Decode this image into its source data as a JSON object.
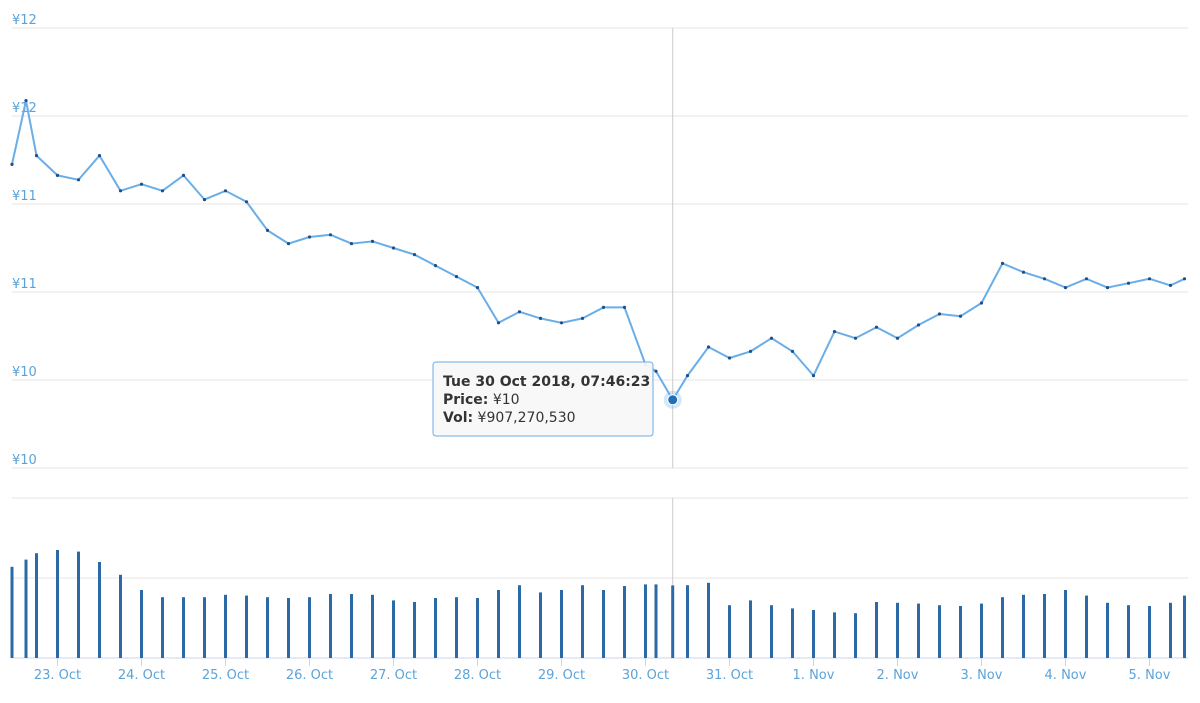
{
  "chart_data": {
    "type": "stock",
    "xlim": [
      "2018-10-22T11:00",
      "2018-11-05T11:00"
    ],
    "xticks": [
      {
        "value": "2018-10-23T00:00",
        "label": "23. Oct"
      },
      {
        "value": "2018-10-24T00:00",
        "label": "24. Oct"
      },
      {
        "value": "2018-10-25T00:00",
        "label": "25. Oct"
      },
      {
        "value": "2018-10-26T00:00",
        "label": "26. Oct"
      },
      {
        "value": "2018-10-27T00:00",
        "label": "27. Oct"
      },
      {
        "value": "2018-10-28T00:00",
        "label": "28. Oct"
      },
      {
        "value": "2018-10-29T00:00",
        "label": "29. Oct"
      },
      {
        "value": "2018-10-30T00:00",
        "label": "30. Oct"
      },
      {
        "value": "2018-10-31T00:00",
        "label": "31. Oct"
      },
      {
        "value": "2018-11-01T00:00",
        "label": "1. Nov"
      },
      {
        "value": "2018-11-02T00:00",
        "label": "2. Nov"
      },
      {
        "value": "2018-11-03T00:00",
        "label": "3. Nov"
      },
      {
        "value": "2018-11-04T00:00",
        "label": "4. Nov"
      },
      {
        "value": "2018-11-05T00:00",
        "label": "5. Nov"
      }
    ],
    "ylim": [
      10,
      12
    ],
    "yticks": [
      {
        "value": 12,
        "label": "¥12"
      },
      {
        "value": 11.6,
        "label": "¥12"
      },
      {
        "value": 11.2,
        "label": "¥11"
      },
      {
        "value": 10.8,
        "label": "¥11"
      },
      {
        "value": 10.4,
        "label": "¥10"
      },
      {
        "value": 10,
        "label": "¥10"
      }
    ],
    "vol_ylim": [
      0,
      2000000000
    ],
    "vol_gridlines": [
      0,
      1000000000,
      2000000000
    ],
    "grid": true,
    "x": [
      "2018-10-22T11:00",
      "2018-10-22T15:00",
      "2018-10-22T18:00",
      "2018-10-23T00:00",
      "2018-10-23T06:00",
      "2018-10-23T12:00",
      "2018-10-23T18:00",
      "2018-10-24T00:00",
      "2018-10-24T06:00",
      "2018-10-24T12:00",
      "2018-10-24T18:00",
      "2018-10-25T00:00",
      "2018-10-25T06:00",
      "2018-10-25T12:00",
      "2018-10-25T18:00",
      "2018-10-26T00:00",
      "2018-10-26T06:00",
      "2018-10-26T12:00",
      "2018-10-26T18:00",
      "2018-10-27T00:00",
      "2018-10-27T06:00",
      "2018-10-27T12:00",
      "2018-10-27T18:00",
      "2018-10-28T00:00",
      "2018-10-28T06:00",
      "2018-10-28T12:00",
      "2018-10-28T18:00",
      "2018-10-29T00:00",
      "2018-10-29T06:00",
      "2018-10-29T12:00",
      "2018-10-29T18:00",
      "2018-10-30T00:00",
      "2018-10-30T03:00",
      "2018-10-30T07:46:23",
      "2018-10-30T12:00",
      "2018-10-30T18:00",
      "2018-10-31T00:00",
      "2018-10-31T06:00",
      "2018-10-31T12:00",
      "2018-10-31T18:00",
      "2018-11-01T00:00",
      "2018-11-01T06:00",
      "2018-11-01T12:00",
      "2018-11-01T18:00",
      "2018-11-02T00:00",
      "2018-11-02T06:00",
      "2018-11-02T12:00",
      "2018-11-02T18:00",
      "2018-11-03T00:00",
      "2018-11-03T06:00",
      "2018-11-03T12:00",
      "2018-11-03T18:00",
      "2018-11-04T00:00",
      "2018-11-04T06:00",
      "2018-11-04T12:00",
      "2018-11-04T18:00",
      "2018-11-05T00:00",
      "2018-11-05T06:00",
      "2018-11-05T10:00"
    ],
    "series": [
      {
        "name": "Price",
        "color": "#6aaee8",
        "values": [
          11.38,
          11.67,
          11.42,
          11.33,
          11.31,
          11.42,
          11.26,
          11.29,
          11.26,
          11.33,
          11.22,
          11.26,
          11.21,
          11.08,
          11.02,
          11.05,
          11.06,
          11.02,
          11.03,
          11.0,
          10.97,
          10.92,
          10.87,
          10.82,
          10.66,
          10.71,
          10.68,
          10.66,
          10.68,
          10.73,
          10.73,
          10.47,
          10.44,
          10.31,
          10.42,
          10.55,
          10.5,
          10.53,
          10.59,
          10.53,
          10.42,
          10.62,
          10.59,
          10.64,
          10.59,
          10.65,
          10.7,
          10.69,
          10.75,
          10.93,
          10.89,
          10.86,
          10.82,
          10.86,
          10.82,
          10.84,
          10.86,
          10.83,
          10.86
        ]
      },
      {
        "name": "Vol",
        "color": "#2b6aa6",
        "values": [
          1140000000,
          1230000000,
          1310000000,
          1350000000,
          1330000000,
          1200000000,
          1040000000,
          850000000,
          760000000,
          760000000,
          760000000,
          790000000,
          780000000,
          760000000,
          750000000,
          760000000,
          800000000,
          800000000,
          790000000,
          720000000,
          700000000,
          750000000,
          760000000,
          750000000,
          850000000,
          910000000,
          820000000,
          850000000,
          910000000,
          850000000,
          900000000,
          920000000,
          920000000,
          907270530,
          910000000,
          940000000,
          660000000,
          720000000,
          660000000,
          620000000,
          600000000,
          570000000,
          560000000,
          700000000,
          690000000,
          680000000,
          660000000,
          650000000,
          680000000,
          760000000,
          790000000,
          800000000,
          850000000,
          780000000,
          690000000,
          660000000,
          650000000,
          690000000,
          780000000
        ]
      }
    ],
    "tooltip": {
      "time": "Tue 30 Oct 2018, 07:46:23",
      "price_label": "Price:",
      "price": "¥10",
      "vol_label": "Vol:",
      "vol": "¥907,270,530"
    }
  }
}
